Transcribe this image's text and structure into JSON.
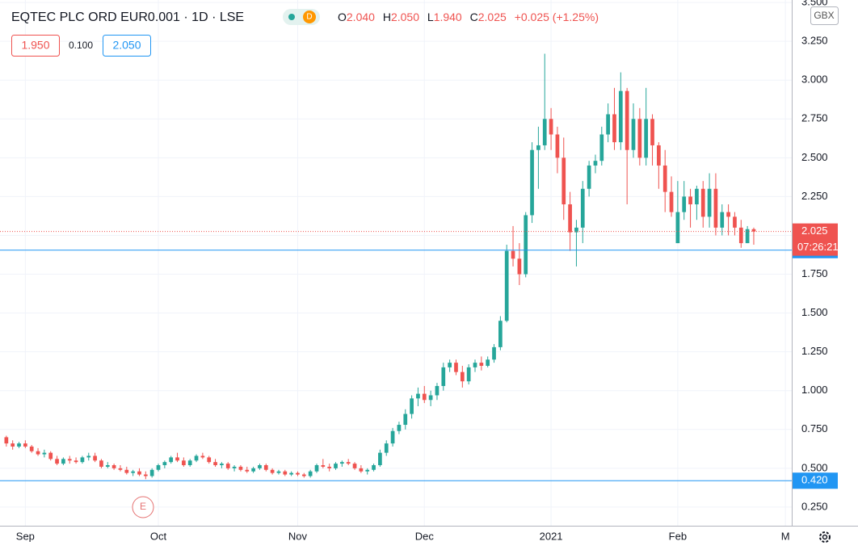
{
  "chart_data": {
    "type": "candlestick",
    "title": "EQTEC PLC ORD EUR0.001 · 1D · LSE",
    "exchange_badge": "D",
    "currency": "GBX",
    "header": {
      "o_label": "O",
      "o": "2.040",
      "h_label": "H",
      "h": "2.050",
      "l_label": "L",
      "l": "1.940",
      "c_label": "C",
      "c": "2.025",
      "change": "+0.025 (+1.25%)"
    },
    "quote": {
      "bid": "1.950",
      "spread": "0.100",
      "ask": "2.050"
    },
    "event_marker": "E",
    "up_color": "#26a69a",
    "down_color": "#ef5350",
    "xlim": [
      -1,
      124
    ],
    "xticks": [
      {
        "value": 3,
        "label": "Sep"
      },
      {
        "value": 24,
        "label": "Oct"
      },
      {
        "value": 46,
        "label": "Nov"
      },
      {
        "value": 66,
        "label": "Dec"
      },
      {
        "value": 86,
        "label": "2021"
      },
      {
        "value": 106,
        "label": "Feb"
      },
      {
        "value": 123,
        "label": "M"
      }
    ],
    "ylim": [
      0.13,
      3.516
    ],
    "yticks": [
      {
        "value": 0.25,
        "label": "0.250"
      },
      {
        "value": 0.5,
        "label": "0.500"
      },
      {
        "value": 0.75,
        "label": "0.750"
      },
      {
        "value": 1,
        "label": "1.000"
      },
      {
        "value": 1.25,
        "label": "1.250"
      },
      {
        "value": 1.5,
        "label": "1.500"
      },
      {
        "value": 1.75,
        "label": "1.750"
      },
      {
        "value": 2,
        "label": "2.000"
      },
      {
        "value": 2.25,
        "label": "2.250"
      },
      {
        "value": 2.5,
        "label": "2.500"
      },
      {
        "value": 2.75,
        "label": "2.750"
      },
      {
        "value": 3,
        "label": "3.000"
      },
      {
        "value": 3.25,
        "label": "3.250"
      },
      {
        "value": 3.5,
        "label": "3.500"
      }
    ],
    "last_price": {
      "value": 2.025,
      "label": "2.025",
      "countdown": "07:26:21"
    },
    "levels": [
      {
        "value": 1.905,
        "label": "1.905"
      },
      {
        "value": 0.42,
        "label": "0.420"
      }
    ],
    "ohlc": {
      "open": [
        0.7,
        0.66,
        0.64,
        0.66,
        0.64,
        0.61,
        0.59,
        0.6,
        0.56,
        0.53,
        0.56,
        0.55,
        0.54,
        0.57,
        0.58,
        0.55,
        0.51,
        0.52,
        0.5,
        0.49,
        0.47,
        0.48,
        0.46,
        0.45,
        0.49,
        0.52,
        0.54,
        0.57,
        0.55,
        0.52,
        0.55,
        0.58,
        0.57,
        0.54,
        0.52,
        0.53,
        0.5,
        0.51,
        0.49,
        0.48,
        0.5,
        0.52,
        0.49,
        0.47,
        0.48,
        0.46,
        0.47,
        0.46,
        0.45,
        0.48,
        0.52,
        0.51,
        0.5,
        0.53,
        0.54,
        0.53,
        0.5,
        0.48,
        0.49,
        0.52,
        0.6,
        0.66,
        0.74,
        0.78,
        0.85,
        0.95,
        0.98,
        0.94,
        0.97,
        1.03,
        1.15,
        1.18,
        1.12,
        1.06,
        1.15,
        1.18,
        1.16,
        1.2,
        1.28,
        1.45,
        1.9,
        1.85,
        1.75,
        2.13,
        2.55,
        2.58,
        2.75,
        2.65,
        2.5,
        2.2,
        2.02,
        2.05,
        2.3,
        2.45,
        2.48,
        2.65,
        2.78,
        2.6,
        2.93,
        2.55,
        2.75,
        2.5,
        2.75,
        2.58,
        2.45,
        2.28,
        1.95,
        2.15,
        2.25,
        2.2,
        2.3,
        2.12,
        2.3,
        2.05,
        2.15,
        2.12,
        2.05,
        1.95,
        2.04
      ],
      "high": [
        0.71,
        0.68,
        0.67,
        0.68,
        0.65,
        0.63,
        0.62,
        0.61,
        0.58,
        0.57,
        0.58,
        0.57,
        0.58,
        0.6,
        0.6,
        0.56,
        0.54,
        0.53,
        0.52,
        0.51,
        0.49,
        0.5,
        0.48,
        0.5,
        0.53,
        0.55,
        0.58,
        0.6,
        0.57,
        0.56,
        0.59,
        0.6,
        0.58,
        0.56,
        0.54,
        0.54,
        0.52,
        0.52,
        0.51,
        0.51,
        0.53,
        0.53,
        0.5,
        0.49,
        0.49,
        0.48,
        0.48,
        0.47,
        0.49,
        0.53,
        0.56,
        0.53,
        0.54,
        0.55,
        0.56,
        0.54,
        0.52,
        0.5,
        0.53,
        0.62,
        0.68,
        0.76,
        0.8,
        0.88,
        0.97,
        1.02,
        1.03,
        1.0,
        1.05,
        1.18,
        1.2,
        1.2,
        1.16,
        1.17,
        1.2,
        1.22,
        1.22,
        1.3,
        1.48,
        1.94,
        2.06,
        1.95,
        2.15,
        2.6,
        2.7,
        3.17,
        2.82,
        2.7,
        2.63,
        2.28,
        2.1,
        2.35,
        2.48,
        2.52,
        2.7,
        2.85,
        2.95,
        3.05,
        2.95,
        2.85,
        2.82,
        2.95,
        2.78,
        2.6,
        2.55,
        2.38,
        2.35,
        2.35,
        2.3,
        2.32,
        2.35,
        2.4,
        2.4,
        2.2,
        2.2,
        2.15,
        2.1,
        2.06,
        2.05
      ],
      "low": [
        0.64,
        0.62,
        0.63,
        0.63,
        0.6,
        0.58,
        0.57,
        0.55,
        0.52,
        0.52,
        0.53,
        0.53,
        0.53,
        0.55,
        0.54,
        0.5,
        0.5,
        0.49,
        0.48,
        0.46,
        0.45,
        0.45,
        0.43,
        0.44,
        0.48,
        0.5,
        0.53,
        0.54,
        0.51,
        0.51,
        0.54,
        0.56,
        0.53,
        0.51,
        0.5,
        0.49,
        0.48,
        0.48,
        0.47,
        0.47,
        0.49,
        0.48,
        0.46,
        0.46,
        0.45,
        0.45,
        0.45,
        0.44,
        0.44,
        0.47,
        0.5,
        0.48,
        0.49,
        0.51,
        0.52,
        0.49,
        0.47,
        0.46,
        0.48,
        0.51,
        0.58,
        0.64,
        0.72,
        0.75,
        0.82,
        0.9,
        0.92,
        0.9,
        0.94,
        1.0,
        1.12,
        1.1,
        1.02,
        1.04,
        1.12,
        1.13,
        1.15,
        1.18,
        1.26,
        1.44,
        1.8,
        1.68,
        1.73,
        2.08,
        2.3,
        2.55,
        2.55,
        2.4,
        2.1,
        1.9,
        1.8,
        1.95,
        2.25,
        2.4,
        2.45,
        2.6,
        2.55,
        2.55,
        2.2,
        2.5,
        2.45,
        2.45,
        2.45,
        2.3,
        2.15,
        2.12,
        1.95,
        2.1,
        2.05,
        2.1,
        2.05,
        2.05,
        2.0,
        2.0,
        2.0,
        2.0,
        1.92,
        1.95,
        1.94
      ],
      "close": [
        0.66,
        0.64,
        0.66,
        0.64,
        0.61,
        0.59,
        0.6,
        0.56,
        0.53,
        0.56,
        0.55,
        0.54,
        0.57,
        0.58,
        0.55,
        0.51,
        0.52,
        0.5,
        0.49,
        0.47,
        0.48,
        0.46,
        0.45,
        0.49,
        0.52,
        0.54,
        0.57,
        0.55,
        0.52,
        0.55,
        0.58,
        0.57,
        0.54,
        0.52,
        0.53,
        0.5,
        0.51,
        0.49,
        0.48,
        0.5,
        0.52,
        0.49,
        0.47,
        0.48,
        0.46,
        0.47,
        0.46,
        0.45,
        0.48,
        0.52,
        0.51,
        0.5,
        0.53,
        0.54,
        0.53,
        0.5,
        0.48,
        0.49,
        0.52,
        0.6,
        0.66,
        0.74,
        0.78,
        0.85,
        0.95,
        0.98,
        0.94,
        0.97,
        1.03,
        1.15,
        1.18,
        1.12,
        1.06,
        1.15,
        1.18,
        1.16,
        1.2,
        1.28,
        1.45,
        1.9,
        1.85,
        1.75,
        2.13,
        2.55,
        2.58,
        2.75,
        2.65,
        2.5,
        2.2,
        2.02,
        2.05,
        2.3,
        2.45,
        2.48,
        2.65,
        2.78,
        2.6,
        2.93,
        2.55,
        2.75,
        2.5,
        2.75,
        2.58,
        2.45,
        2.28,
        2.15,
        2.15,
        2.25,
        2.2,
        2.3,
        2.12,
        2.3,
        2.05,
        2.15,
        2.12,
        2.05,
        1.95,
        2.04,
        2.025
      ]
    }
  }
}
